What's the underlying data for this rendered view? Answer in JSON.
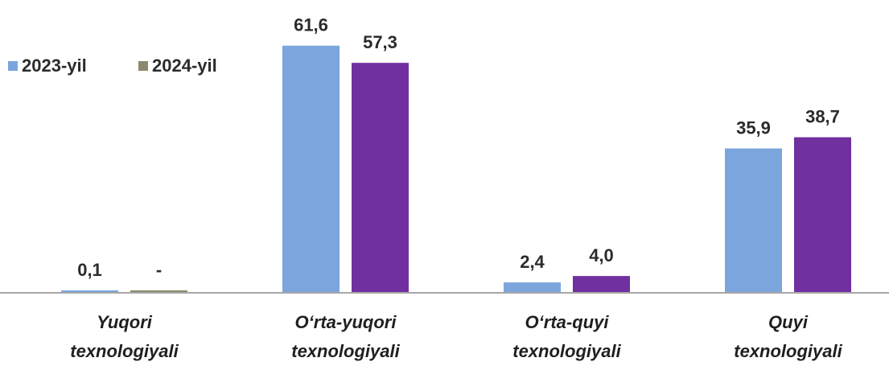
{
  "chart_data": {
    "type": "bar",
    "categories": [
      "Yuqori texnologiyali",
      "O‘rta-yuqori texnologiyali",
      "O‘rta-quyi texnologiyali",
      "Quyi texnologiyali"
    ],
    "series": [
      {
        "name": "2023-yil",
        "color": "#7ba5dc",
        "values": [
          0.1,
          61.6,
          2.4,
          35.9
        ],
        "value_labels": [
          "0,1",
          "61,6",
          "2,4",
          "35,9"
        ]
      },
      {
        "name": "2024-yil",
        "color": "#7030a0",
        "legend_color": "#8c8a6e",
        "values": [
          0,
          57.3,
          4.0,
          38.7
        ],
        "value_labels": [
          "-",
          "57,3",
          "4,0",
          "38,7"
        ]
      }
    ],
    "ylim": [
      0,
      70
    ]
  }
}
